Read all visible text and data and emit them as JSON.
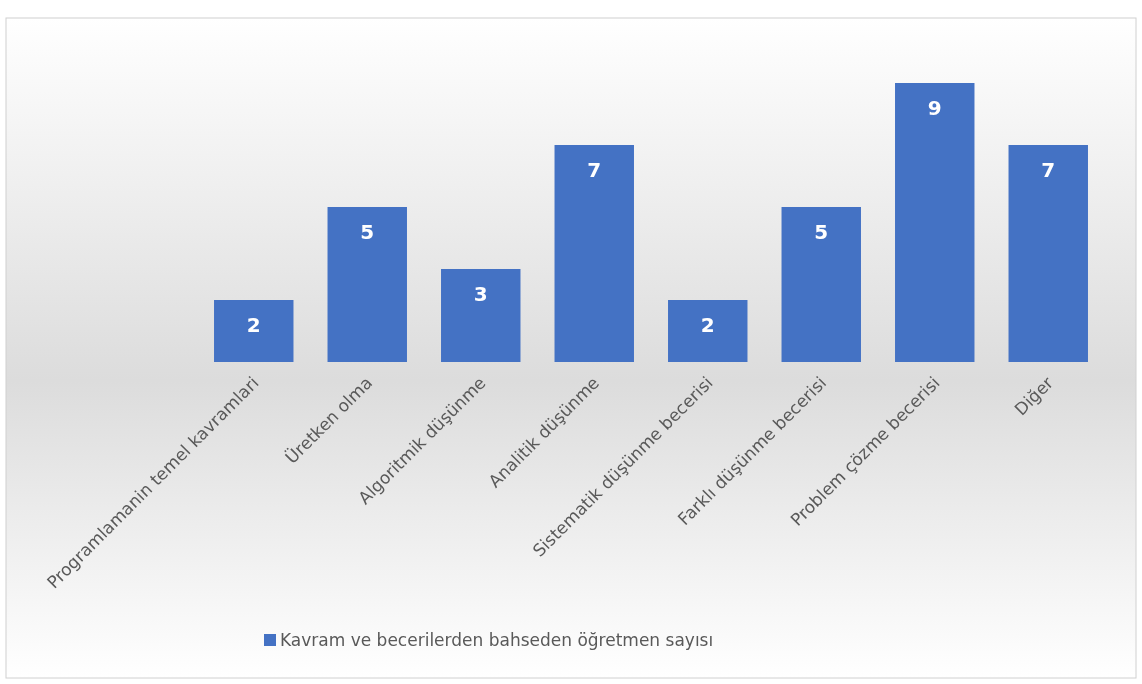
{
  "chart_data": {
    "type": "bar",
    "categories": [
      "Programlamanin temel kavramlari",
      "Üretken olma",
      "Algoritmik düşünme",
      "Analitik düşünme",
      "Sistematik düşünme becerisi",
      "Farklı düşünme becerisi",
      "Problem çözme becerisi",
      "Diğer"
    ],
    "series": [
      {
        "name": "Kavram ve becerilerden bahseden öğretmen sayısı",
        "color": "#4472c4",
        "values": [
          2,
          5,
          3,
          7,
          2,
          5,
          9,
          7
        ]
      }
    ],
    "data_labels": true,
    "legend": "bottom",
    "grid": false
  }
}
